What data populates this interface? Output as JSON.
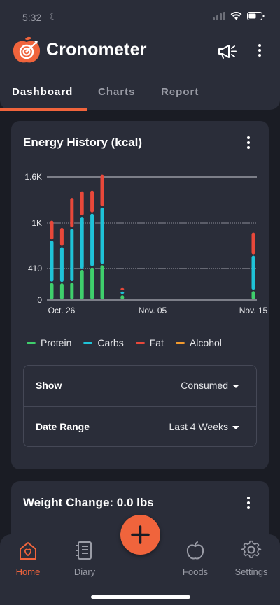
{
  "status_bar": {
    "time": "5:32"
  },
  "app": {
    "title": "Cronometer"
  },
  "tabs": [
    {
      "label": "Dashboard",
      "active": true
    },
    {
      "label": "Charts",
      "active": false
    },
    {
      "label": "Report",
      "active": false
    }
  ],
  "energy_card": {
    "title": "Energy History (kcal)",
    "options": [
      {
        "label": "Show",
        "value": "Consumed"
      },
      {
        "label": "Date Range",
        "value": "Last 4 Weeks"
      }
    ]
  },
  "weight_card": {
    "title": "Weight Change: 0.0 lbs"
  },
  "colors": {
    "accent": "#f0643c",
    "protein": "#3fcf6c",
    "carbs": "#1fc3d8",
    "fat": "#e8483a",
    "alcohol": "#f29a2e",
    "card": "#2a2d39",
    "background": "#1a1c24"
  },
  "chart_data": {
    "type": "bar",
    "title": "Energy History (kcal)",
    "stacked": true,
    "y_ticks": [
      "0",
      "410",
      "1K",
      "1.6K"
    ],
    "y_tick_values": [
      0,
      410,
      1000,
      1600
    ],
    "ylim": [
      0,
      1600
    ],
    "x_ticks": [
      "Oct. 26",
      "Nov. 05",
      "Nov. 15"
    ],
    "x_tick_days": [
      0,
      10,
      20
    ],
    "days": [
      0,
      1,
      2,
      3,
      4,
      5,
      7,
      20
    ],
    "series": [
      {
        "name": "Protein",
        "values": [
          230,
          225,
          235,
          400,
          430,
          460,
          70,
          125
        ]
      },
      {
        "name": "Carbs",
        "values": [
          550,
          470,
          700,
          690,
          700,
          750,
          50,
          460
        ]
      },
      {
        "name": "Fat",
        "values": [
          260,
          250,
          400,
          330,
          300,
          430,
          40,
          300
        ]
      },
      {
        "name": "Alcohol",
        "values": [
          0,
          0,
          0,
          0,
          0,
          0,
          0,
          0
        ]
      }
    ],
    "legend": [
      "Protein",
      "Carbs",
      "Fat",
      "Alcohol"
    ],
    "legend_position": "bottom",
    "grid": true
  },
  "nav": [
    {
      "label": "Home",
      "active": true
    },
    {
      "label": "Diary",
      "active": false
    },
    {
      "label": "Foods",
      "active": false
    },
    {
      "label": "Settings",
      "active": false
    }
  ]
}
